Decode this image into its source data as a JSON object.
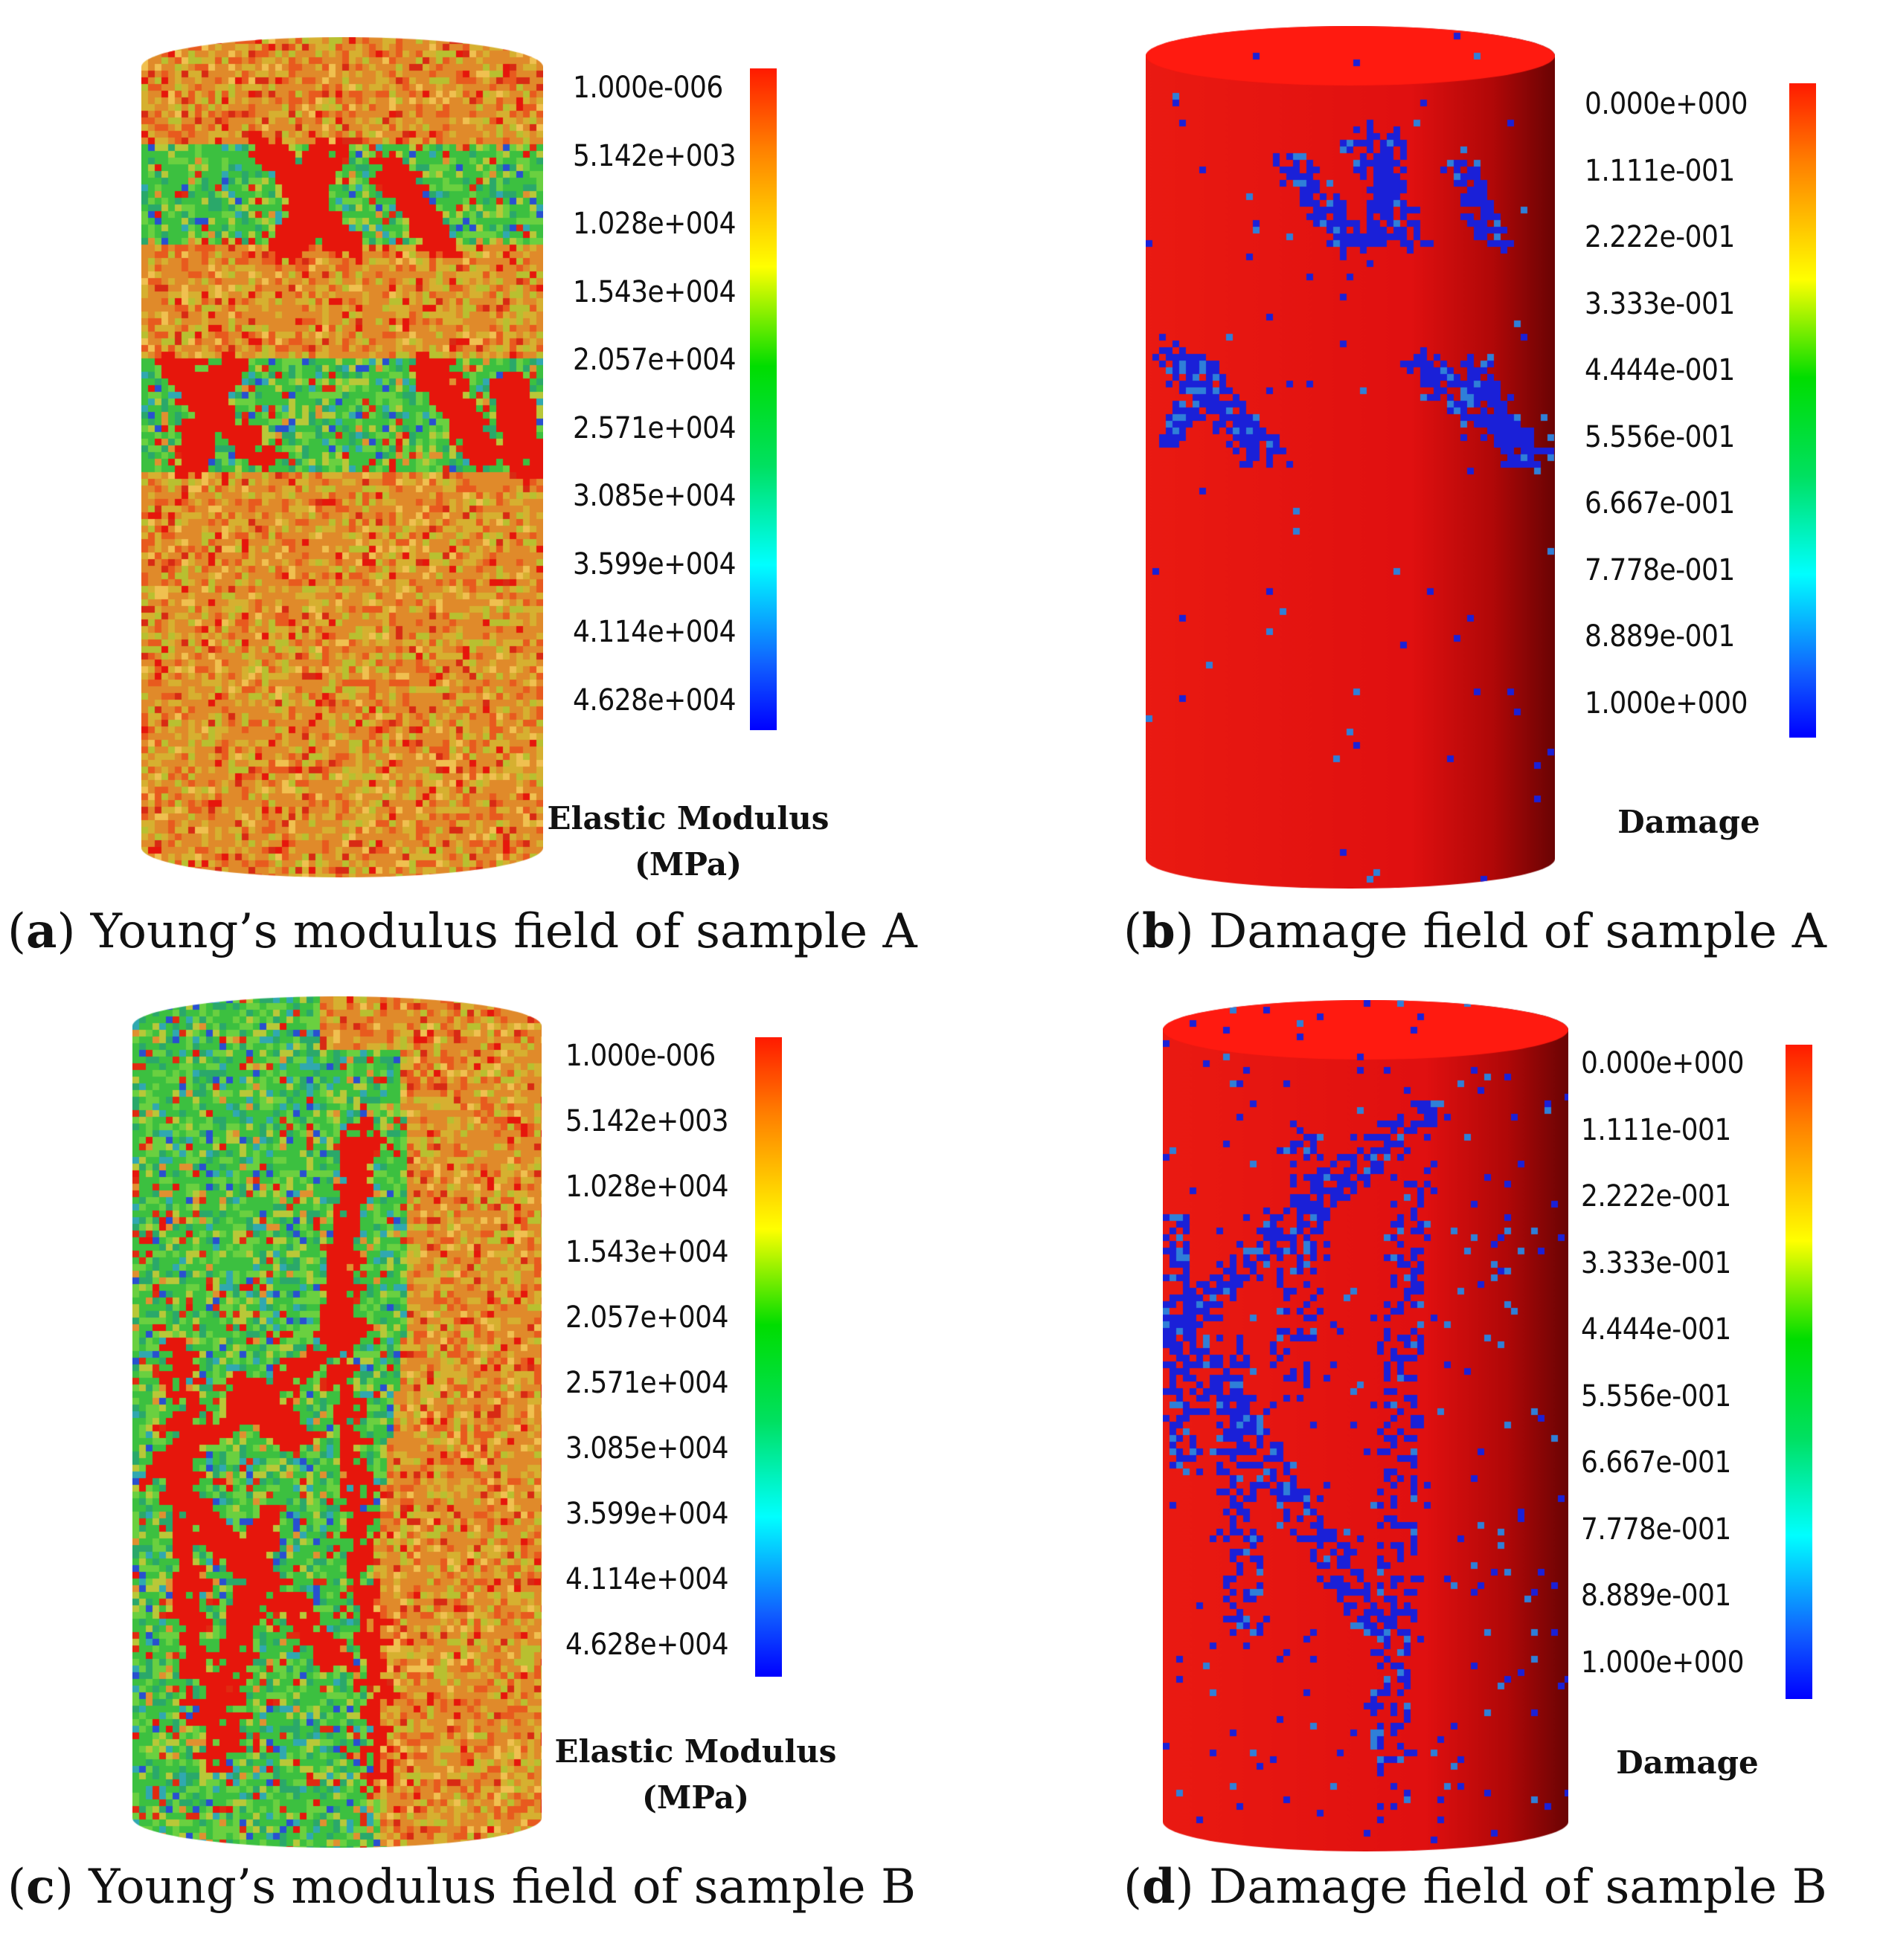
{
  "panels": [
    {
      "id": "a",
      "caption_letter": "a",
      "caption_text": "Young’s modulus field of sample A",
      "legend_title_lines": [
        "Elastic Modulus",
        "(MPa)"
      ],
      "ticks": [
        "1.000e-006",
        "5.142e+003",
        "1.028e+004",
        "1.543e+004",
        "2.057e+004",
        "2.571e+004",
        "3.085e+004",
        "3.599e+004",
        "4.114e+004",
        "4.628e+004"
      ],
      "field": "modulus_bands"
    },
    {
      "id": "b",
      "caption_letter": "b",
      "caption_text": "Damage field of sample A",
      "legend_title_lines": [
        "Damage"
      ],
      "ticks": [
        "0.000e+000",
        "1.111e-001",
        "2.222e-001",
        "3.333e-001",
        "4.444e-001",
        "5.556e-001",
        "6.667e-001",
        "7.778e-001",
        "8.889e-001",
        "1.000e+000"
      ],
      "field": "damage_bands"
    },
    {
      "id": "c",
      "caption_letter": "c",
      "caption_text": "Young’s modulus field of sample B",
      "legend_title_lines": [
        "Elastic Modulus",
        "(MPa)"
      ],
      "ticks": [
        "1.000e-006",
        "5.142e+003",
        "1.028e+004",
        "1.543e+004",
        "2.057e+004",
        "2.571e+004",
        "3.085e+004",
        "3.599e+004",
        "4.114e+004",
        "4.628e+004"
      ],
      "field": "modulus_split"
    },
    {
      "id": "d",
      "caption_letter": "d",
      "caption_text": "Damage field of sample B",
      "legend_title_lines": [
        "Damage"
      ],
      "ticks": [
        "0.000e+000",
        "1.111e-001",
        "2.222e-001",
        "3.333e-001",
        "4.444e-001",
        "5.556e-001",
        "6.667e-001",
        "7.778e-001",
        "8.889e-001",
        "1.000e+000"
      ],
      "field": "damage_diagonal"
    }
  ],
  "colors": {
    "colormap": [
      "#ff1a00",
      "#ff7f00",
      "#ffff00",
      "#00dd00",
      "#00ffff",
      "#0000ff"
    ],
    "damage_background": "#ee1111",
    "crack": "#1122dd"
  }
}
